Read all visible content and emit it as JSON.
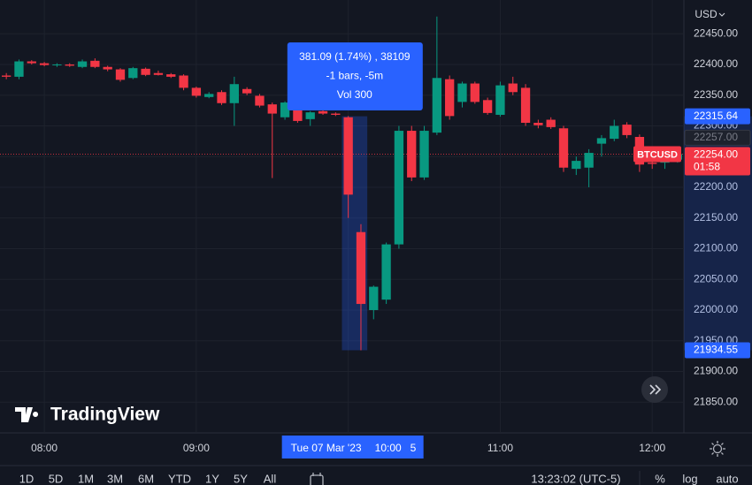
{
  "chart_data": {
    "type": "candlestick",
    "currency": "USD",
    "up_color": "#089981",
    "down_color": "#f23645",
    "x": [
      465,
      470,
      475,
      480,
      485,
      490,
      495,
      500,
      505,
      510,
      515,
      520,
      525,
      530,
      535,
      540,
      545,
      550,
      555,
      560,
      565,
      570,
      575,
      580,
      585,
      590,
      595,
      600,
      605,
      610,
      615,
      620,
      625,
      630,
      635,
      640,
      645,
      650,
      655,
      660,
      665,
      670,
      675,
      680,
      685,
      690,
      695,
      700,
      705,
      710,
      715,
      720,
      725,
      730
    ],
    "open": [
      22382,
      22380,
      22405,
      22402,
      22399,
      22400,
      22396,
      22406,
      22396,
      22392,
      22378,
      22393,
      22386,
      22384,
      22382,
      22362,
      22347,
      22355,
      22337,
      22360,
      22349,
      22335,
      22314,
      22328,
      22311,
      22324,
      22320,
      22314,
      22127,
      22000,
      22017,
      22107,
      22292,
      22216,
      22289,
      22376,
      22339,
      22369,
      22342,
      22318,
      22369,
      22362,
      22305,
      22310,
      22296,
      22230,
      22232,
      22271,
      22279,
      22302,
      22282,
      22240,
      22240,
      22245
    ],
    "high": [
      22386,
      22408,
      22407,
      22404,
      22402,
      22402,
      22408,
      22410,
      22398,
      22394,
      22396,
      22395,
      22390,
      22386,
      22384,
      22364,
      22355,
      22358,
      22380,
      22363,
      22352,
      22338,
      22340,
      22332,
      22324,
      22328,
      22322,
      22316,
      22140,
      22040,
      22110,
      22300,
      22300,
      22300,
      22478,
      22382,
      22372,
      22372,
      22346,
      22372,
      22380,
      22368,
      22310,
      22314,
      22300,
      22250,
      22262,
      22285,
      22310,
      22306,
      22286,
      22246,
      22248,
      22262
    ],
    "low": [
      22376,
      22376,
      22400,
      22397,
      22396,
      22396,
      22394,
      22394,
      22389,
      22372,
      22376,
      22381,
      22382,
      22378,
      22358,
      22346,
      22345,
      22334,
      22300,
      22350,
      22330,
      22215,
      22310,
      22305,
      22300,
      22318,
      22316,
      22150,
      21934.55,
      21985,
      22010,
      22100,
      22210,
      22212,
      22285,
      22310,
      22330,
      22336,
      22318,
      22315,
      22350,
      22300,
      22296,
      22295,
      22225,
      22220,
      22200,
      22250,
      22275,
      22280,
      22225,
      22230,
      22230,
      22240
    ],
    "close": [
      22380,
      22405,
      22402,
      22399,
      22400,
      22398,
      22405,
      22396,
      22392,
      22375,
      22394,
      22383,
      22383,
      22380,
      22362,
      22349,
      22352,
      22337,
      22368,
      22353,
      22333,
      22320,
      22338,
      22308,
      22322,
      22320,
      22318,
      22188,
      22010,
      22038,
      22107,
      22292,
      22216,
      22292,
      22378,
      22316,
      22369,
      22339,
      22321,
      22366,
      22355,
      22305,
      22301,
      22298,
      22232,
      22243,
      22256,
      22280,
      22300,
      22285,
      22237,
      22238,
      22245,
      22254
    ],
    "xlim": [
      462.5,
      732.5
    ],
    "xticks": [
      {
        "value": 480,
        "label": "08:00"
      },
      {
        "value": 540,
        "label": "09:00"
      },
      {
        "value": 600,
        "label": "10:00"
      },
      {
        "value": 660,
        "label": "11:00"
      },
      {
        "value": 720,
        "label": "12:00"
      }
    ],
    "ylim": [
      21800,
      22505
    ],
    "yticks": [
      {
        "value": 21850,
        "label": "21850.00"
      },
      {
        "value": 21900,
        "label": "21900.00"
      },
      {
        "value": 21950,
        "label": "21950.00"
      },
      {
        "value": 22000,
        "label": "22000.00"
      },
      {
        "value": 22050,
        "label": "22050.00"
      },
      {
        "value": 22100,
        "label": "22100.00"
      },
      {
        "value": 22150,
        "label": "22150.00"
      },
      {
        "value": 22200,
        "label": "22200.00"
      },
      {
        "value": 22250,
        "label": "22250.00"
      },
      {
        "value": 22300,
        "label": "22300.00"
      },
      {
        "value": 22350,
        "label": "22350.00"
      },
      {
        "value": 22400,
        "label": "22400.00"
      },
      {
        "value": 22450,
        "label": "22450.00"
      }
    ],
    "grid": true,
    "symbol": "BTCUSD",
    "last_price": {
      "value": 22254,
      "label": "22254.00",
      "countdown": "01:58"
    },
    "other_price": {
      "value": 22257,
      "label": "22257.00"
    },
    "measure": {
      "x": [
        600,
        605
      ],
      "from": {
        "value": 22315.64,
        "label": "22315.64"
      },
      "to": {
        "value": 21934.55,
        "label": "21934.55"
      },
      "lines": [
        "381.09 (1.74%) , 38109",
        "-1 bars, -5m",
        "Vol 300"
      ]
    },
    "crosshair": {
      "date": "Tue 07 Mar '23",
      "extra": "5"
    }
  },
  "ui": {
    "logo": "TradingView",
    "ranges": [
      "1D",
      "5D",
      "1M",
      "3M",
      "6M",
      "YTD",
      "1Y",
      "5Y",
      "All"
    ],
    "clock": "13:23:02 (UTC-5)",
    "options": [
      "%",
      "log",
      "auto"
    ]
  }
}
